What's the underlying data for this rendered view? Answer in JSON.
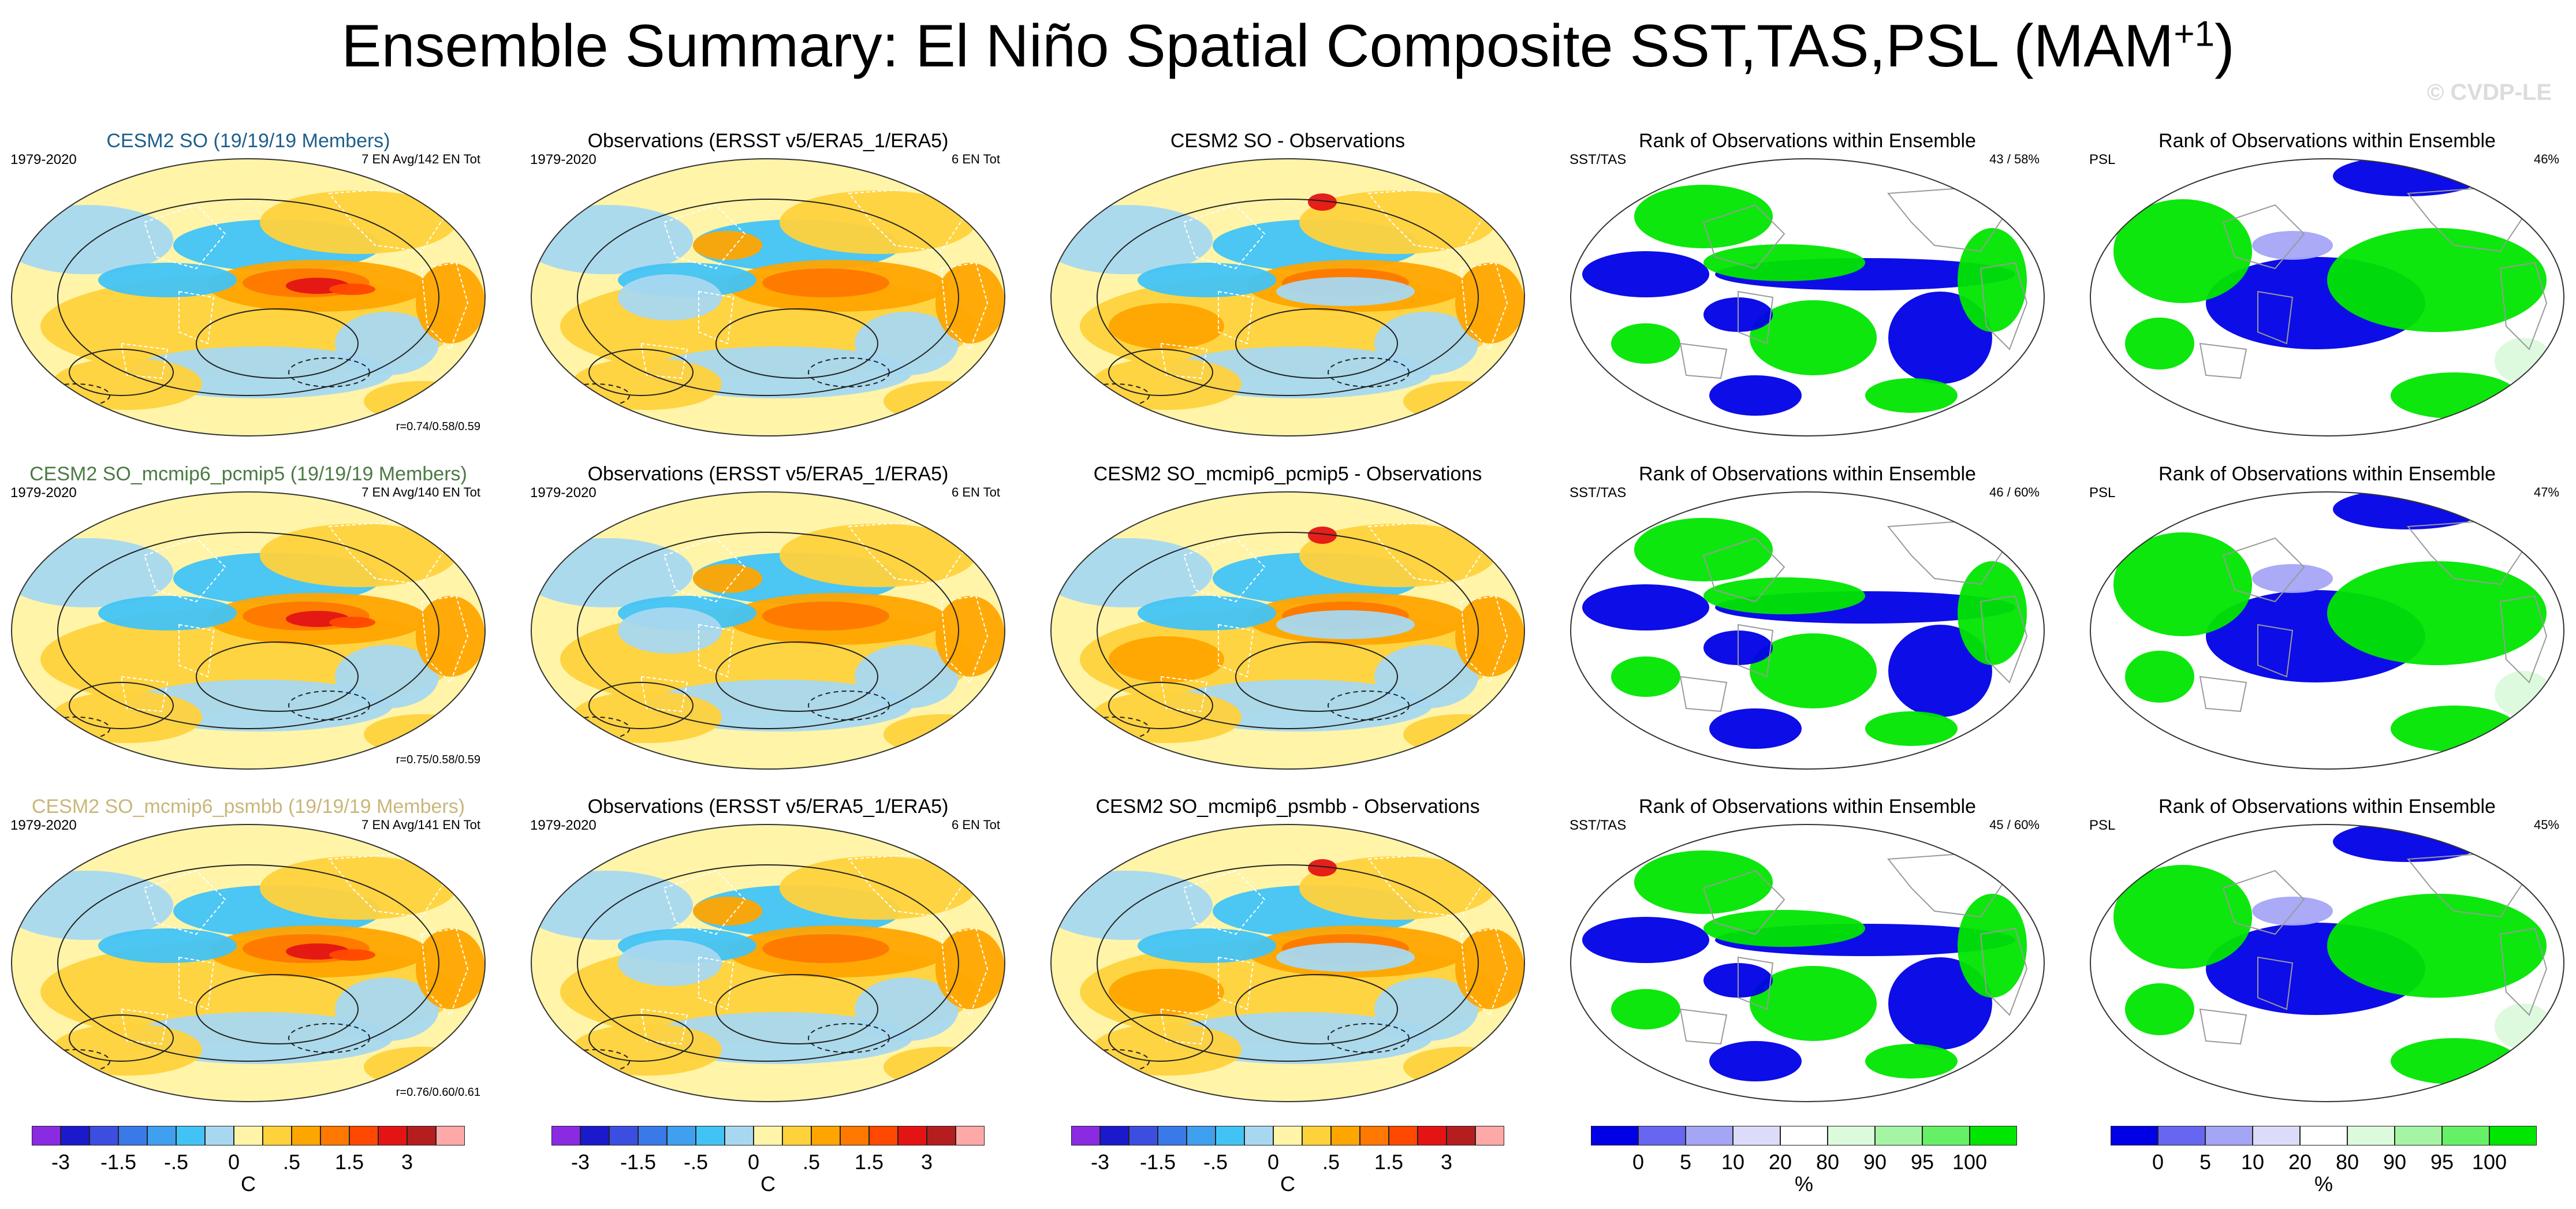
{
  "figure": {
    "title": "Ensemble Summary: El Niño Spatial Composite SST,TAS,PSL (MAM",
    "title_superscript": "+1",
    "title_suffix": ")",
    "watermark": "© CVDP-LE"
  },
  "rows": [
    {
      "model": {
        "title": "CESM2 SO (19/19/19 Members)",
        "title_color": "#1f5f8b",
        "period": "1979-2020",
        "count": "7 EN Avg/142 EN Tot",
        "stats": "r=0.74/0.58/0.59"
      },
      "obs": {
        "title": "Observations (ERSST v5/ERA5_1/ERA5)",
        "period": "1979-2020",
        "count": "6 EN Tot"
      },
      "diff": {
        "title": "CESM2 SO - Observations"
      },
      "rank1": {
        "title": "Rank of Observations within Ensemble",
        "var": "SST/TAS",
        "pct": "43 /  58%"
      },
      "rank2": {
        "title": "Rank of Observations within Ensemble",
        "var": "PSL",
        "pct": "46%"
      }
    },
    {
      "model": {
        "title": "CESM2 SO_mcmip6_pcmip5 (19/19/19 Members)",
        "title_color": "#4c7a45",
        "period": "1979-2020",
        "count": "7 EN Avg/140 EN Tot",
        "stats": "r=0.75/0.58/0.59"
      },
      "obs": {
        "title": "Observations (ERSST v5/ERA5_1/ERA5)",
        "period": "1979-2020",
        "count": "6 EN Tot"
      },
      "diff": {
        "title": "CESM2 SO_mcmip6_pcmip5 - Observations"
      },
      "rank1": {
        "title": "Rank of Observations within Ensemble",
        "var": "SST/TAS",
        "pct": "46 /  60%"
      },
      "rank2": {
        "title": "Rank of Observations within Ensemble",
        "var": "PSL",
        "pct": "47%"
      }
    },
    {
      "model": {
        "title": "CESM2 SO_mcmip6_psmbb (19/19/19 Members)",
        "title_color": "#c9b77a",
        "period": "1979-2020",
        "count": "7 EN Avg/141 EN Tot",
        "stats": "r=0.76/0.60/0.61"
      },
      "obs": {
        "title": "Observations (ERSST v5/ERA5_1/ERA5)",
        "period": "1979-2020",
        "count": "6 EN Tot"
      },
      "diff": {
        "title": "CESM2 SO_mcmip6_psmbb - Observations"
      },
      "rank1": {
        "title": "Rank of Observations within Ensemble",
        "var": "SST/TAS",
        "pct": "45 /  60%"
      },
      "rank2": {
        "title": "Rank of Observations within Ensemble",
        "var": "PSL",
        "pct": "45%"
      }
    }
  ],
  "colorbars": {
    "temperature": {
      "unit": "C",
      "ticks": [
        "-3",
        "-1.5",
        "-.5",
        "0",
        ".5",
        "1.5",
        "3"
      ],
      "colors": [
        "#8a2be2",
        "#1a1acc",
        "#3c4ee0",
        "#3a7ae8",
        "#3fa0f0",
        "#42c3f5",
        "#a8d8f0",
        "#fff4a8",
        "#ffd23c",
        "#ffa500",
        "#ff7800",
        "#ff4800",
        "#e41414",
        "#b41e1e",
        "#ffa8a8"
      ]
    },
    "rank": {
      "unit": "%",
      "ticks": [
        "0",
        "5",
        "10",
        "20",
        "80",
        "90",
        "95",
        "100"
      ],
      "colors": [
        "#0000e6",
        "#6666f0",
        "#a5a5f5",
        "#dcdcfa",
        "#ffffff",
        "#dcfadc",
        "#a5f5a5",
        "#66f066",
        "#00e600"
      ]
    }
  }
}
